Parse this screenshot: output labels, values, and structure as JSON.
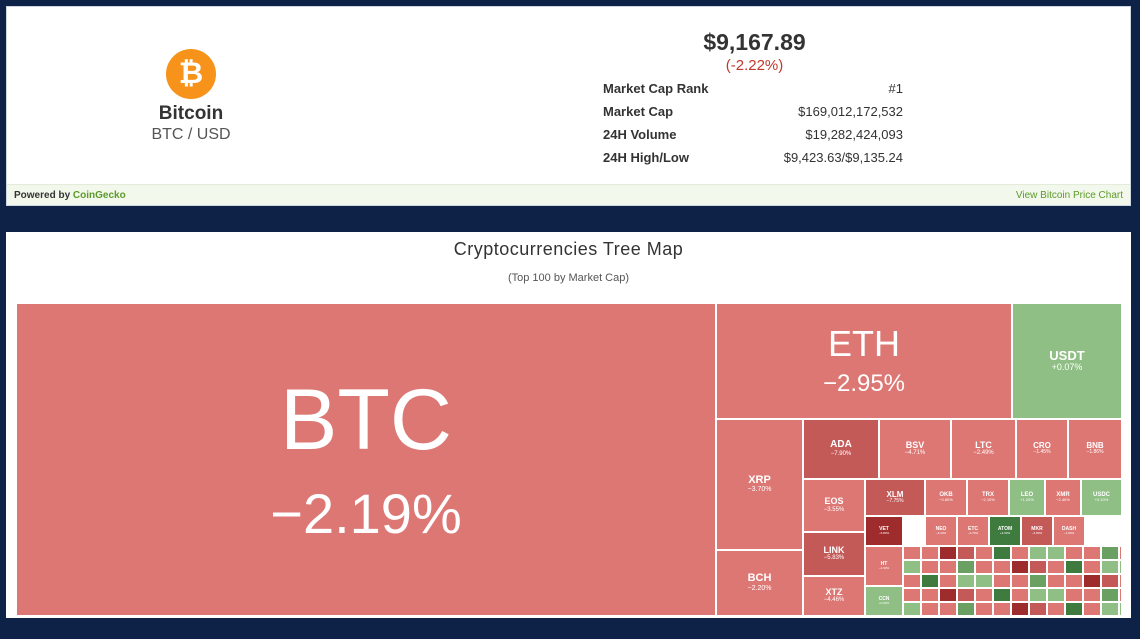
{
  "widget": {
    "icon": "bitcoin-icon",
    "icon_glyph": "₿",
    "coin_name": "Bitcoin",
    "pair": "BTC / USD",
    "price": "$9,167.89",
    "change": "(-2.22%)",
    "stats": [
      {
        "label": "Market Cap Rank",
        "value": "#1"
      },
      {
        "label": "Market Cap",
        "value": "$169,012,172,532"
      },
      {
        "label": "24H Volume",
        "value": "$19,282,424,093"
      },
      {
        "label": "24H High/Low",
        "value": "$9,423.63/$9,135.24"
      }
    ],
    "powered_prefix": "Powered by",
    "powered_brand": "CoinGecko",
    "view_link": "View Bitcoin Price Chart",
    "colors": {
      "accent": "#5b9a27",
      "negative": "#c0392b",
      "btc_orange": "#f7931a"
    }
  },
  "treemap": {
    "title": "Cryptocurrencies Tree Map",
    "subtitle": "(Top 100 by Market Cap)",
    "colors": {
      "light_red": "#dd7774",
      "red": "#c45a58",
      "dark_red": "#9e2c2c",
      "light_green": "#8fbf85",
      "green": "#6aa162",
      "dark_green": "#3f7a3e"
    },
    "tiles": [
      {
        "symbol": "BTC",
        "change": "−2.19%",
        "color": "light_red"
      },
      {
        "symbol": "ETH",
        "change": "−2.95%",
        "color": "light_red"
      },
      {
        "symbol": "USDT",
        "change": "+0.07%",
        "color": "light_green"
      },
      {
        "symbol": "XRP",
        "change": "−3.70%",
        "color": "light_red"
      },
      {
        "symbol": "BCH",
        "change": "−2.20%",
        "color": "light_red"
      },
      {
        "symbol": "ADA",
        "change": "−7.90%",
        "color": "red"
      },
      {
        "symbol": "BSV",
        "change": "−4.71%",
        "color": "light_red"
      },
      {
        "symbol": "LTC",
        "change": "−2.49%",
        "color": "light_red"
      },
      {
        "symbol": "CRO",
        "change": "−1.45%",
        "color": "light_red"
      },
      {
        "symbol": "BNB",
        "change": "−1.86%",
        "color": "light_red"
      },
      {
        "symbol": "EOS",
        "change": "−3.55%",
        "color": "light_red"
      },
      {
        "symbol": "XLM",
        "change": "−7.75%",
        "color": "red"
      },
      {
        "symbol": "OKB",
        "change": "−0.80%",
        "color": "light_red"
      },
      {
        "symbol": "TRX",
        "change": "−2.10%",
        "color": "light_red"
      },
      {
        "symbol": "LEO",
        "change": "+1.20%",
        "color": "light_green"
      },
      {
        "symbol": "XMR",
        "change": "−2.40%",
        "color": "light_red"
      },
      {
        "symbol": "USDC",
        "change": "+0.10%",
        "color": "light_green"
      },
      {
        "symbol": "LINK",
        "change": "−5.83%",
        "color": "red"
      },
      {
        "symbol": "XTZ",
        "change": "−4.46%",
        "color": "light_red"
      },
      {
        "symbol": "VET",
        "change": "−6.80%",
        "color": "dark_red"
      },
      {
        "symbol": "NEO",
        "change": "−3.10%",
        "color": "light_red"
      },
      {
        "symbol": "ETC",
        "change": "−2.70%",
        "color": "light_red"
      },
      {
        "symbol": "ATOM",
        "change": "+3.00%",
        "color": "dark_green"
      },
      {
        "symbol": "MKR",
        "change": "−4.80%",
        "color": "red"
      },
      {
        "symbol": "DASH",
        "change": "−1.90%",
        "color": "light_red"
      },
      {
        "symbol": "HT",
        "change": "−2.30%",
        "color": "light_red"
      },
      {
        "symbol": "CCN",
        "change": "+0.90%",
        "color": "light_green"
      }
    ]
  }
}
